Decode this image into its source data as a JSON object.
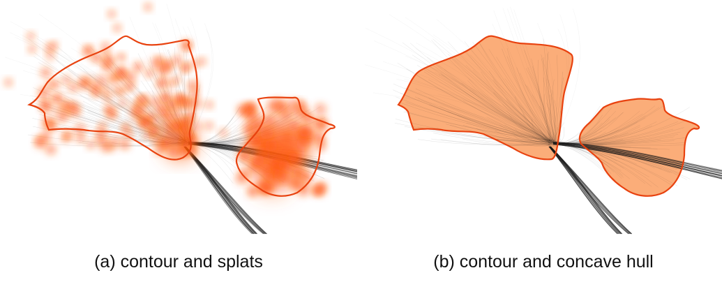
{
  "panels": [
    {
      "id": "a",
      "caption": "(a) contour and splats",
      "style": "splats"
    },
    {
      "id": "b",
      "caption": "(b) contour and concave hull",
      "style": "hull"
    }
  ],
  "colors": {
    "contour": "#e8420f",
    "splat": "#ff5a10",
    "hull_fill": "#fba66e",
    "edges": "#1a1a1a",
    "caption_text": "#111111"
  }
}
